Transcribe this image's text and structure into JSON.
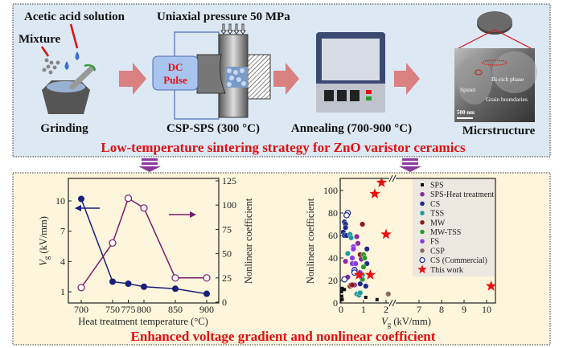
{
  "top_panel": {
    "labels": {
      "acetic_acid": "Acetic acid solution",
      "mixture": "Mixture",
      "grinding": "Grinding",
      "pressure": "Uniaxial pressure 50 MPa",
      "dc_pulse_1": "DC",
      "dc_pulse_2": "Pulse",
      "csp_sps": "CSP-SPS (300 °C)",
      "annealing": "Annealing (700-900 °C)",
      "microstructure": "Micrstructure",
      "bi_rich": "Bi-rich phase",
      "spinel": "Spinel",
      "grain_boundaries": "Grain boundaries",
      "scale_bar": "500 nm"
    },
    "title": "Low-temperature sintering strategy for ZnO varistor ceramics",
    "colors": {
      "background": "#dce9f5",
      "title": "#e01010",
      "arrow": "#d98080"
    }
  },
  "bottom_panel": {
    "title": "Enhanced voltage gradient and nonlinear coefficient",
    "colors": {
      "background": "#fdf5dc"
    }
  },
  "chart_data": [
    {
      "type": "line",
      "x": [
        700,
        750,
        775,
        800,
        850,
        900
      ],
      "xlabel": "Heat treatment temperature (°C)",
      "xticks": [
        "700",
        "750",
        "775",
        "800",
        "850",
        "900"
      ],
      "series": [
        {
          "axis": "left",
          "values": [
            10.2,
            2.0,
            1.8,
            1.5,
            1.3,
            0.8
          ],
          "color": "#1a1f7a",
          "marker": "filled-circle"
        },
        {
          "axis": "right",
          "values": [
            15,
            61,
            107,
            97,
            25,
            25
          ],
          "color": "#7a1a6e",
          "marker": "open-circle"
        }
      ],
      "ylabel_left": "V_g (kV/mm)",
      "ylabel_left_main": "V",
      "ylabel_left_sub": "g",
      "ylabel_left_unit": " (kV/mm)",
      "yticks_left": [
        "1",
        "4",
        "7",
        "10"
      ],
      "ylim_left": [
        0,
        12
      ],
      "ylabel_right": "Nonlinear coefficient",
      "yticks_right": [
        "0",
        "25",
        "50",
        "75",
        "100",
        "125"
      ],
      "ylim_right": [
        0,
        125
      ]
    },
    {
      "type": "scatter",
      "xlabel_main": "V",
      "xlabel_sub": "g",
      "xlabel_unit": " (kV/mm)",
      "ylabel": "Nonlinear coefficient",
      "xticks": [
        "0",
        "1",
        "2",
        "7",
        "8",
        "9",
        "10"
      ],
      "yticks": [
        "0",
        "20",
        "40",
        "60",
        "80",
        "100"
      ],
      "x_axis_break": [
        2.2,
        6.5
      ],
      "ylim": [
        0,
        110
      ],
      "legend_position": "top-right",
      "series": [
        {
          "name": "SPS",
          "color": "#111111",
          "marker": "square",
          "points": [
            [
              0.02,
              10
            ],
            [
              0.05,
              13
            ],
            [
              0.1,
              12
            ],
            [
              0.15,
              12
            ],
            [
              0.03,
              6
            ],
            [
              0.05,
              3
            ],
            [
              1.1,
              5
            ],
            [
              1.6,
              3
            ]
          ]
        },
        {
          "name": "SPS-Heat treatment",
          "color": "#8a2a9a",
          "marker": "sphere",
          "points": [
            [
              0.2,
              37
            ],
            [
              0.7,
              59
            ],
            [
              0.75,
              53
            ],
            [
              0.9,
              39
            ],
            [
              0.6,
              16
            ],
            [
              0.3,
              23
            ],
            [
              0.55,
              35
            ]
          ]
        },
        {
          "name": "CS",
          "color": "#1c2a8a",
          "marker": "sphere",
          "points": [
            [
              0.1,
              63
            ],
            [
              0.15,
              72
            ],
            [
              0.2,
              70
            ],
            [
              0.2,
              67
            ],
            [
              0.15,
              60
            ],
            [
              0.25,
              60
            ],
            [
              1.15,
              48
            ],
            [
              1.15,
              35
            ],
            [
              1.1,
              15
            ],
            [
              0.85,
              17
            ],
            [
              0.5,
              40
            ]
          ]
        },
        {
          "name": "TSS",
          "color": "#1f9a9a",
          "marker": "sphere",
          "points": [
            [
              0.3,
              44
            ],
            [
              0.4,
              61
            ],
            [
              0.45,
              58
            ],
            [
              0.7,
              8
            ],
            [
              0.8,
              7
            ],
            [
              0.85,
              9
            ]
          ]
        },
        {
          "name": "MW",
          "color": "#8a1a1a",
          "marker": "sphere",
          "points": [
            [
              0.95,
              70
            ],
            [
              0.85,
              43
            ],
            [
              0.4,
              15
            ],
            [
              0.45,
              16
            ],
            [
              0.5,
              16
            ]
          ]
        },
        {
          "name": "MW-TSS",
          "color": "#2a9a2a",
          "marker": "sphere",
          "points": [
            [
              1.0,
              43
            ],
            [
              1.05,
              40
            ],
            [
              1.0,
              32
            ],
            [
              0.95,
              25
            ],
            [
              0.95,
              21
            ]
          ]
        },
        {
          "name": "FS",
          "color": "#8a3ae0",
          "marker": "sphere",
          "points": [
            [
              0.55,
              50
            ],
            [
              0.55,
              48
            ],
            [
              0.5,
              40
            ],
            [
              0.5,
              35
            ],
            [
              0.6,
              30
            ],
            [
              0.85,
              27
            ],
            [
              0.85,
              24
            ],
            [
              0.65,
              35
            ]
          ]
        },
        {
          "name": "CSP",
          "color": "#8a6a5a",
          "marker": "sphere",
          "points": [
            [
              2.1,
              8
            ]
          ]
        },
        {
          "name": "CS (Commercial)",
          "color": "#1c2a8a",
          "marker": "open-circle",
          "points": [
            [
              0.3,
              80
            ],
            [
              0.25,
              78
            ],
            [
              0.6,
              29
            ],
            [
              0.6,
              27
            ],
            [
              0.15,
              21
            ]
          ]
        },
        {
          "name": "This work",
          "color": "#e81010",
          "marker": "star",
          "points": [
            [
              0.8,
              25
            ],
            [
              1.3,
              25
            ],
            [
              1.5,
              97
            ],
            [
              1.8,
              107
            ],
            [
              2.0,
              61
            ],
            [
              10.2,
              15
            ]
          ]
        }
      ]
    }
  ]
}
